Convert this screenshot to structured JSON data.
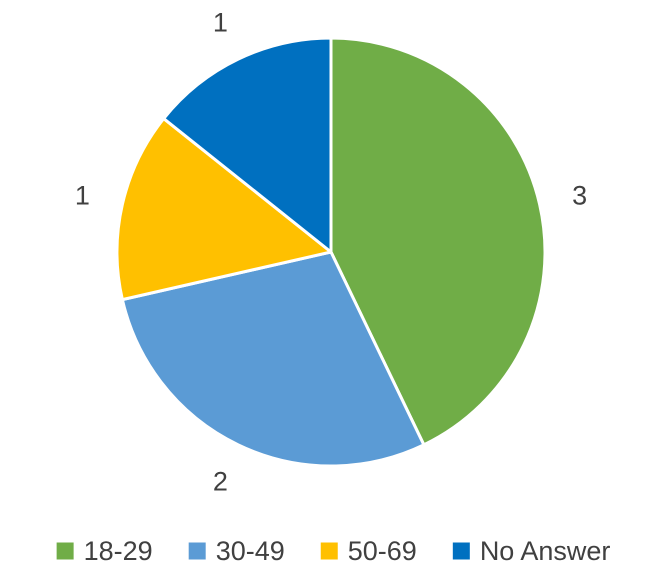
{
  "chart_data": {
    "type": "pie",
    "title": "",
    "categories": [
      "18-29",
      "30-49",
      "50-69",
      "No Answer"
    ],
    "values": [
      3,
      2,
      1,
      1
    ],
    "colors": [
      "#70AD47",
      "#5B9BD5",
      "#FFC000",
      "#0070C0"
    ],
    "data_labels": [
      "3",
      "2",
      "1",
      "1"
    ],
    "legend_position": "bottom",
    "start_angle": "top, clockwise"
  }
}
